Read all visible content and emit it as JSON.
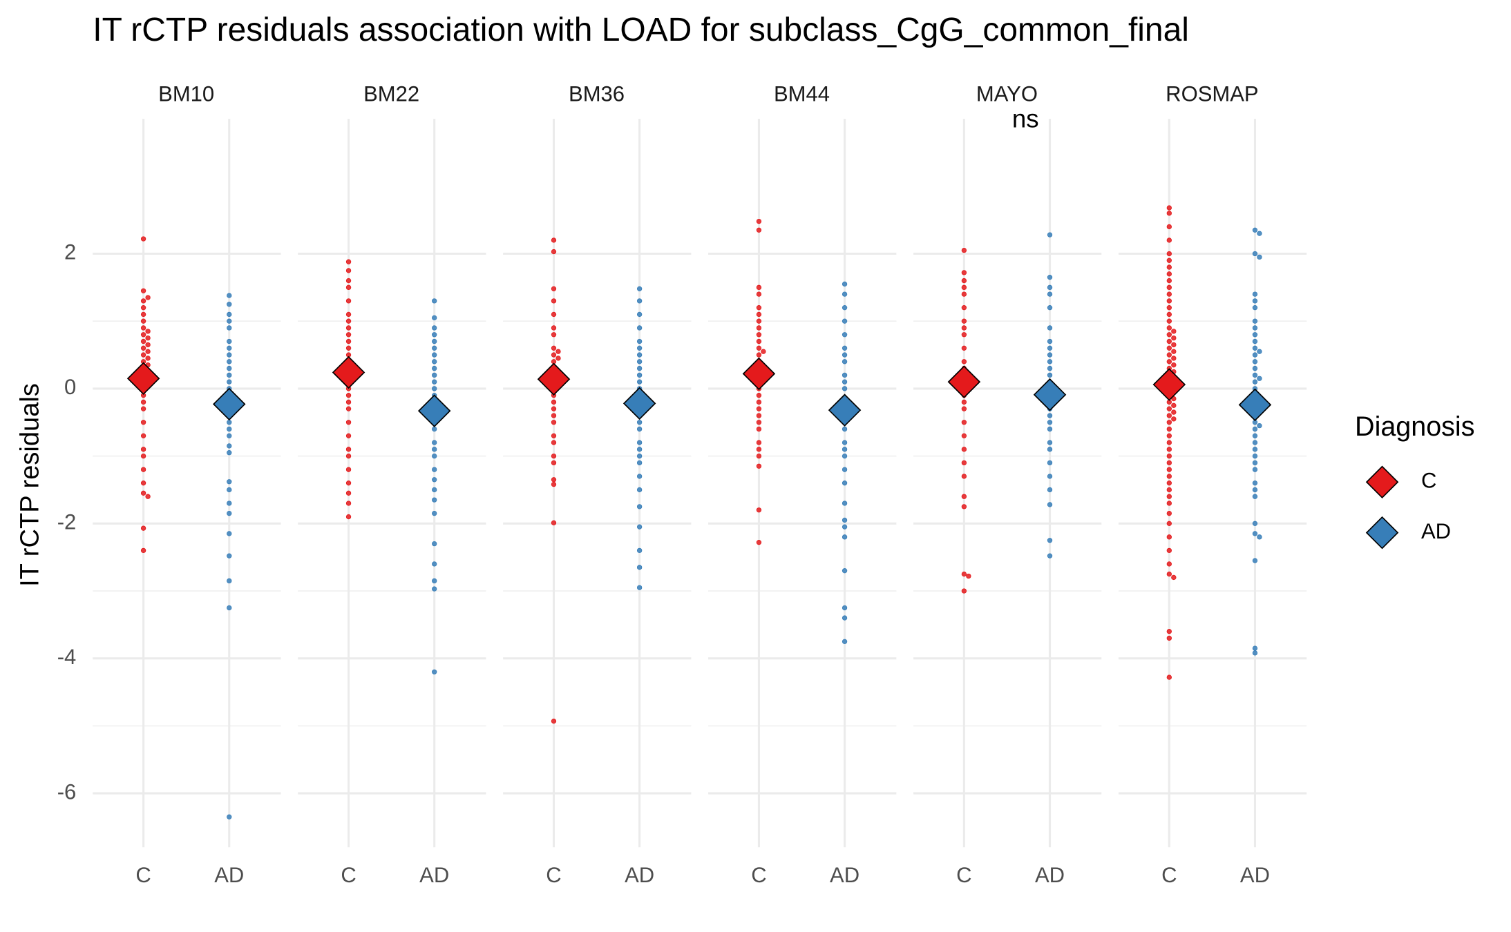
{
  "chart_data": {
    "type": "beeswarm",
    "title": "IT rCTP residuals association with LOAD for subclass_CgG_common_final",
    "y_label": "IT rCTP residuals",
    "legend_title": "Diagnosis",
    "categories": [
      "C",
      "AD"
    ],
    "series": [
      {
        "name": "C",
        "color": "#e41a1c"
      },
      {
        "name": "AD",
        "color": "#377eb8"
      }
    ],
    "ylim": [
      -6.8,
      4.0
    ],
    "yticks": [
      2,
      0,
      -2,
      -4,
      -6
    ],
    "grid": true,
    "annotation": {
      "text": "ns",
      "facet": 4
    },
    "facets": [
      {
        "name": "BM10",
        "means": [
          0.15,
          -0.23
        ],
        "points": [
          [
            2.22,
            1.45,
            1.3,
            1.2,
            1.1,
            1.0,
            0.9,
            0.8,
            0.7,
            0.6,
            0.55,
            0.5,
            0.4,
            0.3,
            0.2,
            0.1,
            0.0,
            -0.1,
            -0.2,
            -0.3,
            -0.5,
            -0.7,
            -0.9,
            -1.0,
            -1.2,
            -1.4,
            -1.55,
            -1.6,
            -2.07,
            -2.4,
            0.65,
            0.75,
            0.45,
            0.35,
            1.35,
            0.85
          ],
          [
            1.38,
            1.25,
            1.1,
            0.9,
            0.7,
            0.6,
            0.4,
            0.3,
            0.1,
            0.0,
            -0.1,
            -0.2,
            -0.35,
            -0.5,
            -0.7,
            -0.85,
            -0.95,
            -1.38,
            -1.5,
            -1.7,
            -1.85,
            -2.15,
            -2.48,
            -2.85,
            -3.25,
            -6.35,
            0.5,
            0.2,
            -0.6,
            1.0
          ]
        ]
      },
      {
        "name": "BM22",
        "means": [
          0.24,
          -0.33
        ],
        "points": [
          [
            1.88,
            1.75,
            1.6,
            1.5,
            1.3,
            1.1,
            1.0,
            0.9,
            0.7,
            0.6,
            0.5,
            0.4,
            0.3,
            0.2,
            0.1,
            0.0,
            -0.1,
            -0.3,
            -0.5,
            -0.7,
            -0.9,
            -1.0,
            -1.2,
            -1.4,
            -1.55,
            -1.7,
            -1.9,
            0.8,
            0.35,
            -0.2
          ],
          [
            1.3,
            1.05,
            0.9,
            0.8,
            0.6,
            0.5,
            0.3,
            0.2,
            0.0,
            -0.1,
            -0.2,
            -0.4,
            -0.6,
            -0.8,
            -1.0,
            -1.2,
            -1.35,
            -1.5,
            -1.65,
            -1.85,
            -2.3,
            -2.6,
            -2.85,
            -2.97,
            -4.2,
            0.7,
            0.1,
            -0.5,
            -0.9,
            0.4
          ]
        ]
      },
      {
        "name": "BM36",
        "means": [
          0.14,
          -0.22
        ],
        "points": [
          [
            2.2,
            2.03,
            1.48,
            1.3,
            1.1,
            0.9,
            0.8,
            0.6,
            0.5,
            0.4,
            0.3,
            0.2,
            0.1,
            0.0,
            -0.1,
            -0.2,
            -0.3,
            -0.5,
            -0.7,
            -0.8,
            -1.0,
            -1.1,
            -1.35,
            -1.42,
            -1.99,
            -4.93,
            0.55,
            0.45,
            0.15,
            -0.4
          ],
          [
            1.48,
            1.3,
            1.1,
            0.9,
            0.7,
            0.5,
            0.4,
            0.2,
            0.0,
            -0.1,
            -0.3,
            -0.5,
            -0.6,
            -0.8,
            -1.0,
            -1.1,
            -1.3,
            -1.5,
            -1.75,
            -2.05,
            -2.4,
            -2.65,
            -2.95,
            0.6,
            0.1,
            -0.2,
            -0.9,
            0.3
          ]
        ]
      },
      {
        "name": "BM44",
        "means": [
          0.22,
          -0.32
        ],
        "points": [
          [
            2.48,
            2.35,
            1.5,
            1.4,
            1.2,
            1.1,
            0.9,
            0.8,
            0.6,
            0.5,
            0.4,
            0.2,
            0.1,
            0.0,
            -0.2,
            -0.3,
            -0.5,
            -0.6,
            -0.8,
            -0.9,
            -1.0,
            -1.15,
            -1.8,
            -2.28,
            0.7,
            0.3,
            -0.1,
            -0.4,
            1.0,
            0.55
          ],
          [
            1.55,
            1.4,
            1.2,
            1.0,
            0.8,
            0.6,
            0.4,
            0.2,
            0.0,
            -0.2,
            -0.4,
            -0.6,
            -0.8,
            -1.0,
            -1.2,
            -1.4,
            -1.7,
            -1.95,
            -2.05,
            -2.2,
            -2.7,
            -3.25,
            -3.4,
            -3.75,
            0.5,
            0.1,
            -0.3,
            -0.5,
            -0.9
          ]
        ]
      },
      {
        "name": "MAYO",
        "means": [
          0.1,
          -0.09
        ],
        "points": [
          [
            2.05,
            1.72,
            1.6,
            1.4,
            1.2,
            1.0,
            0.8,
            0.6,
            0.4,
            0.2,
            0.0,
            -0.1,
            -0.3,
            -0.5,
            -0.7,
            -0.9,
            -1.1,
            -1.3,
            -1.6,
            -1.75,
            -2.75,
            -2.78,
            -3.0,
            0.3,
            0.1,
            -0.2,
            0.9,
            1.5
          ],
          [
            2.28,
            1.65,
            1.5,
            1.4,
            1.2,
            0.9,
            0.6,
            0.5,
            0.4,
            0.3,
            0.1,
            0.0,
            -0.1,
            -0.2,
            -0.3,
            -0.5,
            -0.6,
            -0.8,
            -0.9,
            -1.1,
            -1.3,
            -1.5,
            -1.72,
            -2.25,
            -2.48,
            0.2,
            -0.4,
            0.7
          ]
        ]
      },
      {
        "name": "ROSMAP",
        "means": [
          0.06,
          -0.24
        ],
        "points": [
          [
            2.68,
            2.6,
            2.4,
            2.2,
            2.0,
            1.9,
            1.8,
            1.7,
            1.6,
            1.5,
            1.4,
            1.3,
            1.2,
            1.1,
            1.0,
            0.9,
            0.8,
            0.7,
            0.6,
            0.5,
            0.4,
            0.3,
            0.2,
            0.1,
            0.0,
            -0.1,
            -0.2,
            -0.3,
            -0.4,
            -0.5,
            -0.6,
            -0.7,
            -0.8,
            -0.9,
            -1.0,
            -1.1,
            -1.2,
            -1.3,
            -1.4,
            -1.5,
            -1.6,
            -1.7,
            -1.85,
            -2.0,
            -2.2,
            -2.4,
            -2.6,
            -2.75,
            -2.8,
            -3.6,
            -3.7,
            -4.28,
            0.55,
            0.45,
            0.35,
            0.25,
            0.15,
            0.05,
            -0.05,
            -0.15,
            -0.25,
            0.65,
            0.75,
            0.85,
            -0.35,
            -0.45
          ],
          [
            2.35,
            2.3,
            2.0,
            1.95,
            1.4,
            1.3,
            1.2,
            1.0,
            0.9,
            0.8,
            0.6,
            0.5,
            0.4,
            0.3,
            0.2,
            0.1,
            0.0,
            -0.1,
            -0.2,
            -0.3,
            -0.4,
            -0.5,
            -0.6,
            -0.7,
            -0.8,
            -0.9,
            -1.0,
            -1.1,
            -1.2,
            -1.4,
            -1.5,
            -1.6,
            -2.0,
            -2.15,
            -2.2,
            -2.55,
            -3.85,
            -3.92,
            0.55,
            0.15,
            -0.25,
            -0.55,
            0.7
          ]
        ]
      }
    ]
  }
}
